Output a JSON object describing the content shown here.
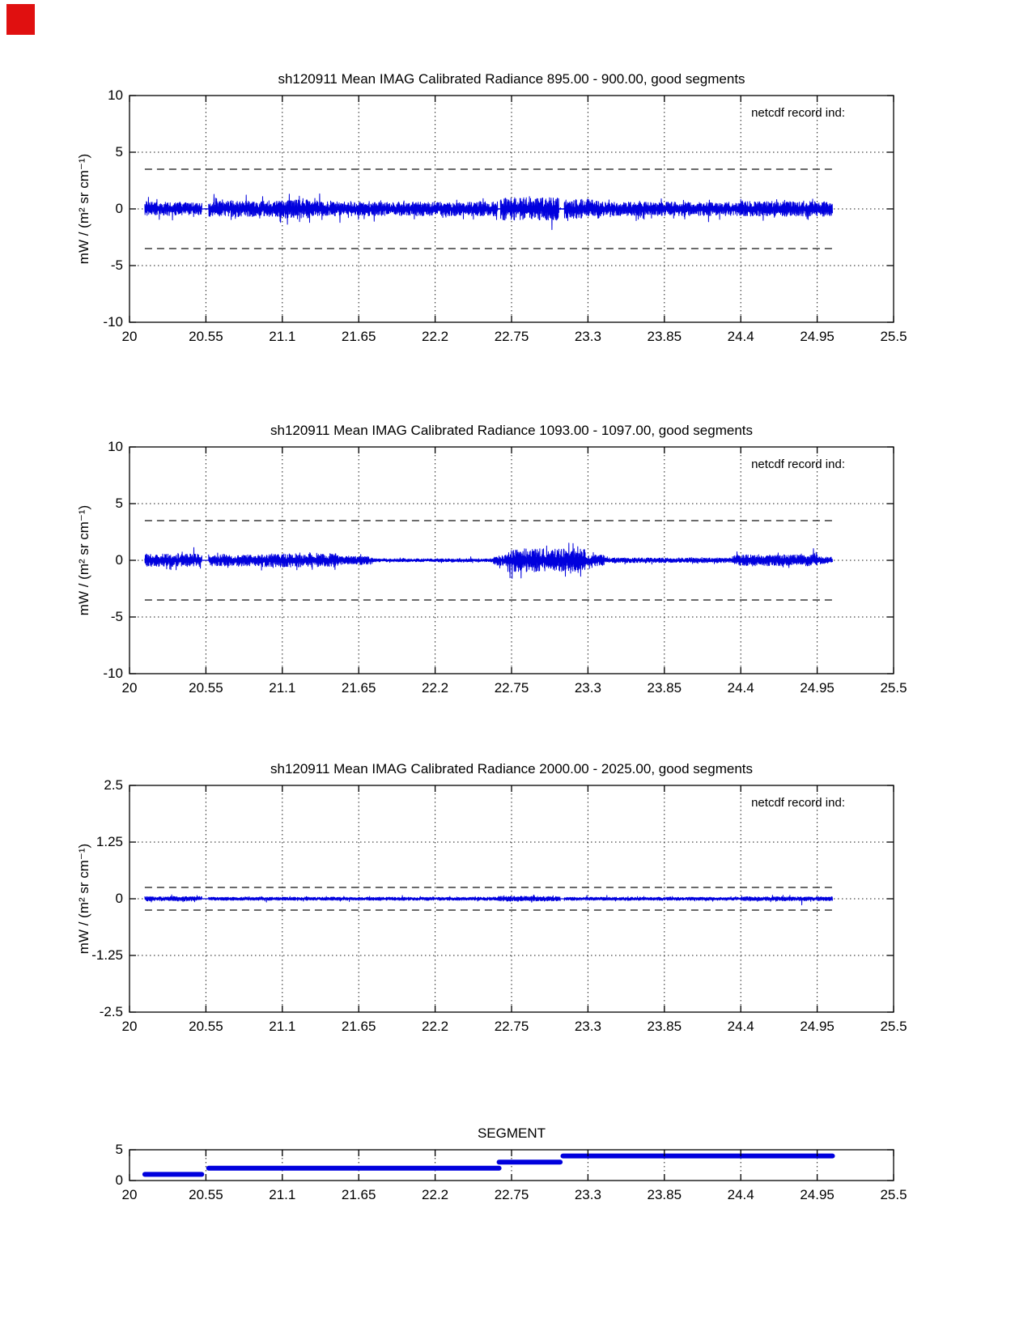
{
  "page": {
    "background_color": "#ffffff",
    "top_left_marker": {
      "color": "#e01010"
    }
  },
  "chart_data": [
    {
      "type": "line",
      "title": "sh120911 Mean IMAG Calibrated Radiance 895.00 - 900.00, good segments",
      "ylabel": "mW / (m² sr cm⁻¹)",
      "annotation": "netcdf record ind:",
      "xlim": [
        20,
        25.5
      ],
      "ylim": [
        -10,
        10
      ],
      "xticks": [
        20,
        20.55,
        21.1,
        21.65,
        22.2,
        22.75,
        23.3,
        23.85,
        24.4,
        24.95,
        25.5
      ],
      "xtick_labels": [
        "20",
        "20.55",
        "21.1",
        "21.65",
        "22.2",
        "22.75",
        "23.3",
        "23.85",
        "24.4",
        "24.95",
        "25.5"
      ],
      "yticks": [
        10,
        5,
        0,
        -5,
        -10
      ],
      "ytick_labels": [
        "10",
        "5",
        "0",
        "-5",
        "-10"
      ],
      "grid_y": [
        5,
        0,
        -5
      ],
      "dashed_y": [
        3.5,
        -3.5
      ],
      "data_xrange": [
        20.11,
        25.06
      ],
      "line_color": "#0000dd",
      "series": [
        {
          "name": "mean calibrated radiance 895-900",
          "baseline": 0,
          "seed": 895,
          "amplitude_profile": [
            {
              "x0": 20.11,
              "x1": 20.52,
              "amp": 0.6
            },
            {
              "x0": 20.52,
              "x1": 20.57,
              "amp": 0.02
            },
            {
              "x0": 20.57,
              "x1": 21.08,
              "amp": 0.68
            },
            {
              "x0": 21.08,
              "x1": 21.3,
              "amp": 0.8
            },
            {
              "x0": 21.3,
              "x1": 22.65,
              "amp": 0.62
            },
            {
              "x0": 22.65,
              "x1": 22.67,
              "amp": 0.05
            },
            {
              "x0": 22.67,
              "x1": 23.09,
              "amp": 1.0
            },
            {
              "x0": 23.09,
              "x1": 23.13,
              "amp": 0.05
            },
            {
              "x0": 23.13,
              "x1": 23.4,
              "amp": 0.85
            },
            {
              "x0": 23.4,
              "x1": 24.4,
              "amp": 0.6
            },
            {
              "x0": 24.4,
              "x1": 25.06,
              "amp": 0.66
            }
          ]
        }
      ]
    },
    {
      "type": "line",
      "title": "sh120911 Mean IMAG Calibrated Radiance 1093.00 - 1097.00, good segments",
      "ylabel": "mW / (m² sr cm⁻¹)",
      "annotation": "netcdf record ind:",
      "xlim": [
        20,
        25.5
      ],
      "ylim": [
        -10,
        10
      ],
      "xticks": [
        20,
        20.55,
        21.1,
        21.65,
        22.2,
        22.75,
        23.3,
        23.85,
        24.4,
        24.95,
        25.5
      ],
      "xtick_labels": [
        "20",
        "20.55",
        "21.1",
        "21.65",
        "22.2",
        "22.75",
        "23.3",
        "23.85",
        "24.4",
        "24.95",
        "25.5"
      ],
      "yticks": [
        10,
        5,
        0,
        -5,
        -10
      ],
      "ytick_labels": [
        "10",
        "5",
        "0",
        "-5",
        "-10"
      ],
      "grid_y": [
        5,
        0,
        -5
      ],
      "dashed_y": [
        3.5,
        -3.5
      ],
      "data_xrange": [
        20.11,
        25.06
      ],
      "line_color": "#0000dd",
      "series": [
        {
          "name": "mean calibrated radiance 1093-1097",
          "baseline": 0,
          "seed": 1093,
          "amplitude_profile": [
            {
              "x0": 20.11,
              "x1": 20.52,
              "amp": 0.55
            },
            {
              "x0": 20.52,
              "x1": 20.57,
              "amp": 0.02
            },
            {
              "x0": 20.57,
              "x1": 20.95,
              "amp": 0.5
            },
            {
              "x0": 20.95,
              "x1": 21.5,
              "amp": 0.6
            },
            {
              "x0": 21.5,
              "x1": 21.75,
              "amp": 0.35
            },
            {
              "x0": 21.75,
              "x1": 22.62,
              "amp": 0.14
            },
            {
              "x0": 22.62,
              "x1": 22.72,
              "amp": 0.45
            },
            {
              "x0": 22.72,
              "x1": 23.28,
              "amp": 1.05
            },
            {
              "x0": 23.28,
              "x1": 23.42,
              "amp": 0.5
            },
            {
              "x0": 23.42,
              "x1": 24.35,
              "amp": 0.22
            },
            {
              "x0": 24.35,
              "x1": 24.95,
              "amp": 0.5
            },
            {
              "x0": 24.95,
              "x1": 25.06,
              "amp": 0.3
            }
          ]
        }
      ]
    },
    {
      "type": "line",
      "title": "sh120911 Mean IMAG Calibrated Radiance 2000.00 - 2025.00, good segments",
      "ylabel": "mW / (m² sr cm⁻¹)",
      "annotation": "netcdf record ind:",
      "xlim": [
        20,
        25.5
      ],
      "ylim": [
        -2.5,
        2.5
      ],
      "xticks": [
        20,
        20.55,
        21.1,
        21.65,
        22.2,
        22.75,
        23.3,
        23.85,
        24.4,
        24.95,
        25.5
      ],
      "xtick_labels": [
        "20",
        "20.55",
        "21.1",
        "21.65",
        "22.2",
        "22.75",
        "23.3",
        "23.85",
        "24.4",
        "24.95",
        "25.5"
      ],
      "yticks": [
        2.5,
        1.25,
        0,
        -1.25,
        -2.5
      ],
      "ytick_labels": [
        "2.5",
        "1.25",
        "0",
        "-1.25",
        "-2.5"
      ],
      "grid_y": [
        1.25,
        0,
        -1.25
      ],
      "dashed_y": [
        0.25,
        -0.25
      ],
      "data_xrange": [
        20.11,
        25.06
      ],
      "line_color": "#0000dd",
      "series": [
        {
          "name": "mean calibrated radiance 2000-2025",
          "baseline": 0,
          "seed": 2000,
          "amplitude_profile": [
            {
              "x0": 20.11,
              "x1": 20.52,
              "amp": 0.05
            },
            {
              "x0": 20.52,
              "x1": 20.57,
              "amp": 0.004
            },
            {
              "x0": 20.57,
              "x1": 22.65,
              "amp": 0.035
            },
            {
              "x0": 22.65,
              "x1": 23.1,
              "amp": 0.055
            },
            {
              "x0": 23.1,
              "x1": 23.13,
              "amp": 0.004
            },
            {
              "x0": 23.13,
              "x1": 24.4,
              "amp": 0.035
            },
            {
              "x0": 24.4,
              "x1": 25.06,
              "amp": 0.045
            }
          ]
        }
      ]
    },
    {
      "type": "step",
      "title": "SEGMENT",
      "xlim": [
        20,
        25.5
      ],
      "ylim": [
        0,
        5
      ],
      "xticks": [
        20,
        20.55,
        21.1,
        21.65,
        22.2,
        22.75,
        23.3,
        23.85,
        24.4,
        24.95,
        25.5
      ],
      "xtick_labels": [
        "20",
        "20.55",
        "21.1",
        "21.65",
        "22.2",
        "22.75",
        "23.3",
        "23.85",
        "24.4",
        "24.95",
        "25.5"
      ],
      "yticks": [
        5,
        0
      ],
      "ytick_labels": [
        "5",
        "0"
      ],
      "line_color": "#0000dd",
      "steps": [
        {
          "segment": 1,
          "x0": 20.11,
          "x1": 20.52
        },
        {
          "segment": 2,
          "x0": 20.57,
          "x1": 22.66
        },
        {
          "segment": 3,
          "x0": 22.66,
          "x1": 23.1
        },
        {
          "segment": 4,
          "x0": 23.12,
          "x1": 25.06
        }
      ]
    }
  ]
}
